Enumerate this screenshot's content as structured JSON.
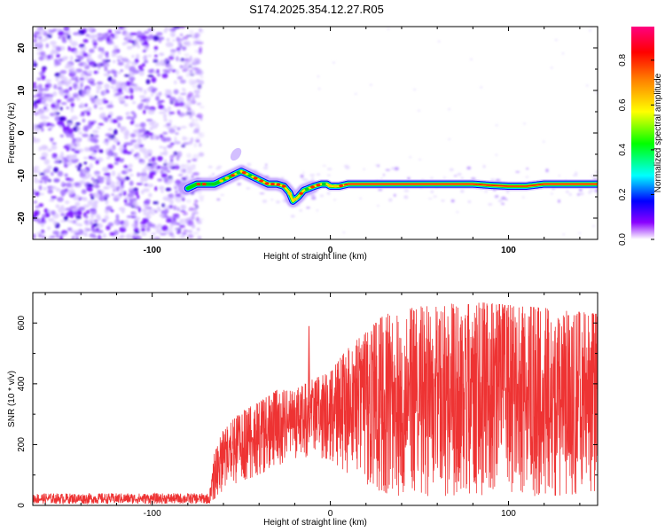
{
  "title": "S174.2025.354.12.27.R05",
  "chart_data": [
    {
      "type": "heatmap",
      "name": "spectrogram",
      "xlabel": "Height of straight line (km)",
      "ylabel": "Frequency (Hz)",
      "xlim": [
        -167,
        150
      ],
      "ylim": [
        -25,
        25
      ],
      "xticks": [
        -100,
        0,
        100
      ],
      "yticks": [
        20,
        10,
        0,
        -10,
        -20
      ],
      "xtick_labels": [
        "-100",
        "0",
        "100"
      ],
      "ytick_labels": [
        "20",
        "10",
        "0",
        "-10",
        "-20"
      ],
      "noise_region_x": [
        -167,
        -75
      ],
      "ridge": {
        "x": [
          -80,
          -75,
          -70,
          -65,
          -60,
          -55,
          -50,
          -45,
          -40,
          -35,
          -30,
          -26,
          -23,
          -21,
          -18,
          -15,
          -12,
          -9,
          -5,
          -2,
          0,
          5,
          10,
          20,
          40,
          60,
          80,
          90,
          100,
          110,
          120,
          130,
          140,
          150
        ],
        "y": [
          -13,
          -12,
          -12,
          -12,
          -11,
          -10,
          -9,
          -10,
          -11,
          -12,
          -12,
          -12.5,
          -14,
          -16,
          -15,
          -13.5,
          -13,
          -12.5,
          -12,
          -12,
          -12.5,
          -12.5,
          -12,
          -12,
          -12,
          -12,
          -12,
          -12.3,
          -12.5,
          -12.5,
          -12,
          -12,
          -12,
          -12
        ]
      },
      "colorbar": {
        "label": "Normalized spectral amplitude",
        "min": 0,
        "max": 0.95,
        "ticks": [
          0.0,
          0.2,
          0.4,
          0.6,
          0.8
        ],
        "tick_labels": [
          "0.0",
          "0.2",
          "0.4",
          "0.6",
          "0.8"
        ],
        "colors": [
          "#ffffff",
          "#8a00ff",
          "#0000ff",
          "#00ffff",
          "#00ff00",
          "#ffff00",
          "#ff8000",
          "#ff0000",
          "#ff0080"
        ]
      }
    },
    {
      "type": "line",
      "name": "snr",
      "xlabel": "Height of straight line (km)",
      "ylabel": "SNR (10 * v/v)",
      "xlim": [
        -167,
        150
      ],
      "ylim": [
        0,
        700
      ],
      "xticks": [
        -100,
        0,
        100
      ],
      "yticks": [
        0,
        200,
        400,
        600
      ],
      "xtick_labels": [
        "-100",
        "0",
        "100"
      ],
      "ytick_labels": [
        "0",
        "200",
        "400",
        "600"
      ],
      "color": "#ee3333",
      "envelope": {
        "x": [
          -167,
          -100,
          -68,
          -65,
          -60,
          -50,
          -40,
          -30,
          -20,
          -12,
          0,
          10,
          20,
          30,
          40,
          60,
          80,
          100,
          120,
          150
        ],
        "low": [
          5,
          5,
          5,
          20,
          50,
          80,
          100,
          130,
          150,
          160,
          150,
          100,
          60,
          40,
          30,
          30,
          30,
          30,
          30,
          40
        ],
        "high": [
          40,
          40,
          40,
          180,
          250,
          310,
          340,
          380,
          380,
          410,
          440,
          520,
          570,
          630,
          650,
          660,
          670,
          660,
          650,
          630
        ]
      },
      "spike": {
        "x": -12,
        "y": 590
      }
    }
  ]
}
